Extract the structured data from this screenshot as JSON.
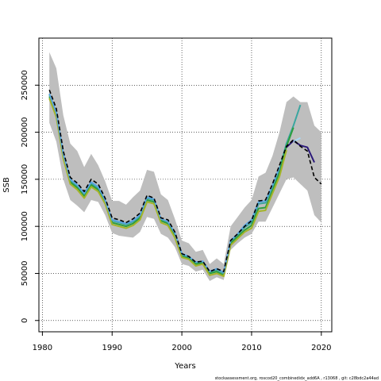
{
  "chart_data": {
    "type": "line",
    "title": "",
    "xlabel": "Years",
    "ylabel": "SSB",
    "xlim": [
      1979.5,
      2021.5
    ],
    "ylim": [
      -12000,
      300000
    ],
    "xticks": [
      1980,
      1990,
      2000,
      2010,
      2020
    ],
    "yticks": [
      0,
      50000,
      100000,
      150000,
      200000,
      250000
    ],
    "grid": true,
    "legend": "none",
    "colors": {
      "band": "#bebebe",
      "terminal": "#000000",
      "peel_teal": "#3aa6a0",
      "peel_green": "#2e9e3e",
      "peel_olive": "#a5b42a",
      "peel_blue": "#5aa6e0",
      "peel_purple": "#2c1a7a",
      "peel_lightblue": "#a8d8f8"
    },
    "x": [
      1981,
      1982,
      1983,
      1984,
      1985,
      1986,
      1987,
      1988,
      1989,
      1990,
      1991,
      1992,
      1993,
      1994,
      1995,
      1996,
      1997,
      1998,
      1999,
      2000,
      2001,
      2002,
      2003,
      2004,
      2005,
      2006,
      2007,
      2008,
      2009,
      2010,
      2011,
      2012,
      2013,
      2014,
      2015,
      2016,
      2017,
      2018,
      2019,
      2020
    ],
    "band": {
      "lower": [
        210000,
        190000,
        150000,
        128000,
        122000,
        115000,
        128000,
        126000,
        112000,
        93000,
        90000,
        89000,
        88000,
        94000,
        110000,
        108000,
        92000,
        88000,
        78000,
        60000,
        58000,
        52000,
        54000,
        42000,
        46000,
        43000,
        75000,
        82000,
        88000,
        92000,
        105000,
        105000,
        120000,
        135000,
        150000,
        152000,
        145000,
        138000,
        112000,
        104000
      ],
      "upper": [
        285000,
        268000,
        218000,
        188000,
        180000,
        163000,
        177000,
        165000,
        148000,
        127000,
        127000,
        123000,
        131000,
        138000,
        160000,
        158000,
        134000,
        128000,
        108000,
        85000,
        82000,
        73000,
        75000,
        60000,
        66000,
        60000,
        100000,
        110000,
        120000,
        128000,
        153000,
        157000,
        175000,
        200000,
        232000,
        238000,
        232000,
        232000,
        207000,
        200000
      ]
    },
    "series": [
      {
        "key": "terminal",
        "dashed": true,
        "values": [
          245000,
          225000,
          180000,
          152000,
          146000,
          137000,
          150000,
          145000,
          130000,
          109000,
          107000,
          104000,
          108000,
          114000,
          133000,
          130000,
          109000,
          107000,
          94000,
          71000,
          68000,
          62000,
          63000,
          52000,
          55000,
          52000,
          85000,
          92000,
          100000,
          106000,
          127000,
          128000,
          145000,
          165000,
          185000,
          192000,
          185000,
          180000,
          152000,
          145000
        ]
      },
      {
        "key": "peel_teal",
        "values": [
          240000,
          220000,
          176000,
          149000,
          143000,
          134000,
          146000,
          141000,
          127000,
          106000,
          104000,
          102000,
          105000,
          111000,
          130000,
          128000,
          107000,
          104000,
          92000,
          70000,
          67000,
          61000,
          62000,
          51000,
          54000,
          50000,
          84000,
          91000,
          99000,
          104000,
          124000,
          125000,
          142000,
          161000,
          188000,
          207000,
          229000,
          null,
          null,
          null
        ]
      },
      {
        "key": "peel_green",
        "values": [
          238000,
          218000,
          174000,
          147000,
          141000,
          132000,
          144000,
          139000,
          126000,
          104000,
          102000,
          100000,
          103000,
          109000,
          128000,
          126000,
          106000,
          103000,
          90000,
          68000,
          66000,
          60000,
          61000,
          50000,
          52000,
          48000,
          82000,
          89000,
          96000,
          101000,
          119000,
          120000,
          138000,
          157000,
          185000,
          205000,
          null,
          null,
          null,
          null
        ]
      },
      {
        "key": "peel_olive",
        "values": [
          236000,
          216000,
          172000,
          145000,
          139000,
          130000,
          142000,
          137000,
          124000,
          102000,
          100000,
          98000,
          101000,
          107000,
          126000,
          124000,
          104000,
          101000,
          88000,
          67000,
          65000,
          58000,
          60000,
          48000,
          50000,
          47000,
          80000,
          87000,
          94000,
          98000,
          116000,
          117000,
          135000,
          153000,
          181000,
          null,
          null,
          null,
          null,
          null
        ]
      },
      {
        "key": "peel_blue",
        "values": [
          241000,
          221000,
          177000,
          150000,
          144000,
          135000,
          147000,
          142000,
          128000,
          107000,
          105000,
          103000,
          106000,
          112000,
          131000,
          129000,
          108000,
          105000,
          93000,
          71000,
          68000,
          62000,
          63000,
          52000,
          55000,
          51000,
          85000,
          92000,
          101000,
          107000,
          126000,
          127000,
          144000,
          163000,
          null,
          null,
          null,
          null,
          null,
          null
        ]
      },
      {
        "key": "peel_purple",
        "values": [
          null,
          null,
          null,
          null,
          null,
          null,
          null,
          null,
          null,
          null,
          null,
          null,
          null,
          null,
          null,
          null,
          null,
          null,
          null,
          null,
          null,
          null,
          null,
          null,
          null,
          null,
          null,
          null,
          null,
          null,
          null,
          null,
          null,
          null,
          184000,
          191000,
          186000,
          184000,
          168000,
          null
        ]
      },
      {
        "key": "peel_lightblue",
        "values": [
          null,
          null,
          null,
          null,
          null,
          null,
          null,
          null,
          null,
          null,
          null,
          null,
          null,
          null,
          null,
          null,
          null,
          null,
          null,
          null,
          null,
          null,
          null,
          null,
          null,
          null,
          null,
          null,
          null,
          null,
          null,
          null,
          null,
          null,
          null,
          190000,
          194000,
          null,
          null,
          null
        ]
      }
    ]
  },
  "footer": "stockassessment.org,  roscod20_combinedidx_add6A ,  r13068 ,  git: c28bdc2a44ad"
}
